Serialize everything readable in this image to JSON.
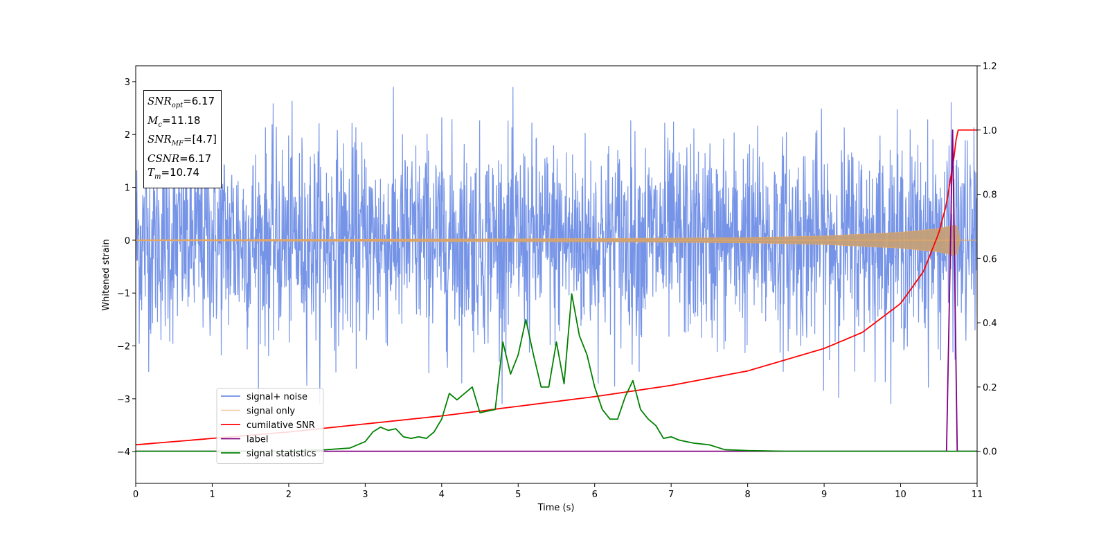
{
  "chart_data": {
    "type": "line",
    "xlabel": "Time (s)",
    "ylabel": "Whitened strain",
    "xlim": [
      0,
      11
    ],
    "ylim": [
      -4.6,
      3.3
    ],
    "y2lim": [
      -0.1,
      1.2
    ],
    "x_ticks": [
      "0",
      "1",
      "2",
      "3",
      "4",
      "5",
      "6",
      "7",
      "8",
      "9",
      "10",
      "11"
    ],
    "y_ticks": [
      "−4",
      "−3",
      "−2",
      "−1",
      "0",
      "1",
      "2",
      "3"
    ],
    "y2_ticks": [
      "0.0",
      "0.2",
      "0.4",
      "0.6",
      "0.8",
      "1.0",
      "1.2"
    ],
    "legend_position": "lower-left",
    "colors": {
      "noise": "#6f8ee6",
      "signal": "#e8a860",
      "signal_fill": "#c4a07a",
      "snr": "#ff0000",
      "label": "#800080",
      "stats": "#008000"
    },
    "series": [
      {
        "name": "signal+ noise",
        "axis": "left",
        "description_values": "noise band amplitude ~±1.2, peaks up to ±2.9 across 0–11 s"
      },
      {
        "name": "signal only",
        "axis": "left",
        "envelope": {
          "x": [
            0,
            6,
            8,
            9,
            10,
            10.5,
            10.74,
            10.76,
            11
          ],
          "amp": [
            0.01,
            0.03,
            0.05,
            0.08,
            0.15,
            0.22,
            0.3,
            0.0,
            0.0
          ]
        }
      },
      {
        "name": "cumilative SNR",
        "axis": "right",
        "x": [
          0,
          1,
          2,
          3,
          4,
          5,
          6,
          7,
          8,
          9,
          9.5,
          10,
          10.3,
          10.5,
          10.6,
          10.7,
          10.74,
          10.8,
          11
        ],
        "values": [
          0.02,
          0.04,
          0.06,
          0.085,
          0.11,
          0.14,
          0.17,
          0.205,
          0.25,
          0.32,
          0.37,
          0.46,
          0.56,
          0.68,
          0.77,
          0.92,
          1.0,
          1.0,
          1.0
        ]
      },
      {
        "name": "label",
        "axis": "right",
        "x": [
          0,
          10.6,
          10.68,
          10.74,
          11
        ],
        "values": [
          0,
          0,
          1.0,
          0,
          0
        ]
      },
      {
        "name": "signal statistics",
        "axis": "right",
        "x": [
          0,
          2,
          2.5,
          2.8,
          3.0,
          3.1,
          3.2,
          3.3,
          3.4,
          3.5,
          3.6,
          3.7,
          3.8,
          3.9,
          4.0,
          4.1,
          4.2,
          4.3,
          4.4,
          4.5,
          4.6,
          4.7,
          4.8,
          4.9,
          5.0,
          5.1,
          5.2,
          5.3,
          5.4,
          5.5,
          5.6,
          5.7,
          5.8,
          5.9,
          6.0,
          6.1,
          6.2,
          6.3,
          6.4,
          6.5,
          6.6,
          6.7,
          6.8,
          6.9,
          7.0,
          7.1,
          7.2,
          7.3,
          7.5,
          7.7,
          8.0,
          8.5,
          11
        ],
        "values": [
          0.0,
          0.0,
          0.005,
          0.01,
          0.03,
          0.06,
          0.075,
          0.065,
          0.07,
          0.045,
          0.04,
          0.045,
          0.04,
          0.06,
          0.1,
          0.18,
          0.16,
          0.18,
          0.2,
          0.12,
          0.125,
          0.13,
          0.34,
          0.24,
          0.3,
          0.41,
          0.3,
          0.2,
          0.2,
          0.34,
          0.21,
          0.49,
          0.36,
          0.3,
          0.2,
          0.13,
          0.1,
          0.1,
          0.17,
          0.22,
          0.13,
          0.1,
          0.08,
          0.04,
          0.045,
          0.035,
          0.03,
          0.025,
          0.02,
          0.005,
          0.002,
          0.0,
          0.0
        ]
      }
    ]
  },
  "stats_box": [
    {
      "main": "SNR",
      "sub": "opt",
      "rest": "=6.17"
    },
    {
      "main": "M",
      "sub": "c",
      "rest": "=11.18"
    },
    {
      "main": "SNR",
      "sub": "MF",
      "rest": "=[4.7]"
    },
    {
      "main": "CSNR",
      "sub": "",
      "rest": "=6.17"
    },
    {
      "main": "T",
      "sub": "m",
      "rest": "=10.74"
    }
  ]
}
